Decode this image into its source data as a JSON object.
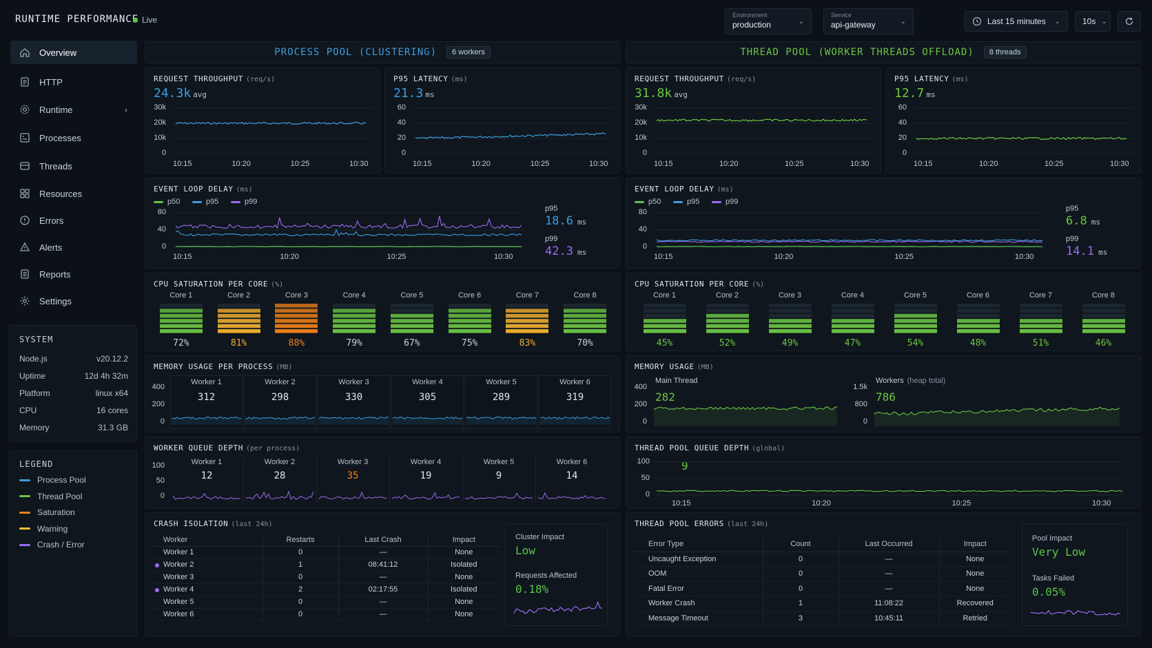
{
  "header": {
    "title": "RUNTIME PERFORMANCE",
    "live": "Live",
    "environment": {
      "label": "Environment",
      "value": "production"
    },
    "service": {
      "label": "Service",
      "value": "api-gateway"
    },
    "time_range": "Last 15 minutes",
    "refresh_interval": "10s"
  },
  "sidebar": {
    "items": [
      {
        "label": "Overview",
        "icon": "home-icon"
      },
      {
        "label": "HTTP",
        "icon": "document-icon"
      },
      {
        "label": "Runtime",
        "icon": "gear-icon"
      },
      {
        "label": "Processes",
        "icon": "processes-icon"
      },
      {
        "label": "Threads",
        "icon": "threads-icon"
      },
      {
        "label": "Resources",
        "icon": "grid-icon"
      },
      {
        "label": "Errors",
        "icon": "error-icon"
      },
      {
        "label": "Alerts",
        "icon": "alert-icon"
      },
      {
        "label": "Reports",
        "icon": "reports-icon"
      },
      {
        "label": "Settings",
        "icon": "settings-icon"
      }
    ],
    "system": {
      "title": "SYSTEM",
      "rows": [
        {
          "k": "Node.js",
          "v": "v20.12.2"
        },
        {
          "k": "Uptime",
          "v": "12d 4h 32m"
        },
        {
          "k": "Platform",
          "v": "linux x64"
        },
        {
          "k": "CPU",
          "v": "16 cores"
        },
        {
          "k": "Memory",
          "v": "31.3 GB"
        }
      ]
    },
    "legend": {
      "title": "LEGEND",
      "items": [
        {
          "label": "Process Pool",
          "color": "#3d9de0"
        },
        {
          "label": "Thread Pool",
          "color": "#6cc644"
        },
        {
          "label": "Saturation",
          "color": "#f0811a"
        },
        {
          "label": "Warning",
          "color": "#f2c230"
        },
        {
          "label": "Crash / Error",
          "color": "#9b6cf0"
        }
      ]
    }
  },
  "colors": {
    "process": "#3d9de0",
    "thread": "#6cc644",
    "orange": "#f0811a",
    "yellow": "#f2b030",
    "purple": "#9b6cf0",
    "p50": "#5bc34a",
    "p95": "#3d9de0",
    "p99": "#9b6cf0"
  },
  "left": {
    "header": {
      "title": "PROCESS POOL (CLUSTERING)",
      "badge": "6 workers"
    },
    "throughput": {
      "title": "REQUEST THROUGHPUT",
      "unit": "(req/s)",
      "value": "24.3k",
      "suffix": "avg",
      "yticks": [
        "30k",
        "20k",
        "10k",
        "0"
      ],
      "xticks": [
        "10:15",
        "10:20",
        "10:25",
        "10:30"
      ],
      "level": 20000,
      "ymax": 30000
    },
    "latency": {
      "title": "P95 LATENCY",
      "unit": "(ms)",
      "value": "21.3",
      "suffix": "ms",
      "yticks": [
        "60",
        "40",
        "20",
        "0"
      ],
      "xticks": [
        "10:15",
        "10:20",
        "10:25",
        "10:30"
      ],
      "start": 20,
      "end": 26,
      "ymax": 60
    },
    "eventloop": {
      "title": "EVENT LOOP DELAY",
      "unit": "(ms)",
      "legend": [
        "p50",
        "p95",
        "p99"
      ],
      "yticks": [
        "80",
        "40",
        "0"
      ],
      "xticks": [
        "10:15",
        "10:20",
        "10:25",
        "10:30"
      ],
      "p95_label": "p95",
      "p95_value": "18.6",
      "p99_label": "p99",
      "p99_value": "42.3",
      "unit_short": "ms"
    },
    "cpu": {
      "title": "CPU SATURATION PER CORE",
      "unit": "(%)",
      "cores": [
        {
          "name": "Core 1",
          "value": "72%",
          "pct": 72,
          "level": "normal"
        },
        {
          "name": "Core 2",
          "value": "81%",
          "pct": 81,
          "level": "warning"
        },
        {
          "name": "Core 3",
          "value": "88%",
          "pct": 88,
          "level": "critical"
        },
        {
          "name": "Core 4",
          "value": "79%",
          "pct": 79,
          "level": "normal"
        },
        {
          "name": "Core 5",
          "value": "67%",
          "pct": 67,
          "level": "normal"
        },
        {
          "name": "Core 6",
          "value": "75%",
          "pct": 75,
          "level": "normal"
        },
        {
          "name": "Core 7",
          "value": "83%",
          "pct": 83,
          "level": "warning"
        },
        {
          "name": "Core 8",
          "value": "70%",
          "pct": 70,
          "level": "normal"
        }
      ]
    },
    "memory": {
      "title": "MEMORY USAGE PER PROCESS",
      "unit": "(MB)",
      "yticks": [
        "400",
        "200",
        "0"
      ],
      "workers": [
        {
          "name": "Worker 1",
          "value": "312"
        },
        {
          "name": "Worker 2",
          "value": "298"
        },
        {
          "name": "Worker 3",
          "value": "330"
        },
        {
          "name": "Worker 4",
          "value": "305"
        },
        {
          "name": "Worker 5",
          "value": "289"
        },
        {
          "name": "Worker 6",
          "value": "319"
        }
      ]
    },
    "queue": {
      "title": "WORKER QUEUE DEPTH",
      "unit": "(per process)",
      "yticks": [
        "100",
        "50",
        "0"
      ],
      "workers": [
        {
          "name": "Worker 1",
          "value": "12",
          "hot": false
        },
        {
          "name": "Worker 2",
          "value": "28",
          "hot": false
        },
        {
          "name": "Worker 3",
          "value": "35",
          "hot": true
        },
        {
          "name": "Worker 4",
          "value": "19",
          "hot": false
        },
        {
          "name": "Worker 5",
          "value": "9",
          "hot": false
        },
        {
          "name": "Worker 6",
          "value": "14",
          "hot": false
        }
      ]
    },
    "crash": {
      "title": "CRASH ISOLATION",
      "unit": "(last 24h)",
      "columns": [
        "Worker",
        "Restarts",
        "Last Crash",
        "Impact"
      ],
      "rows": [
        {
          "worker": "Worker 1",
          "restarts": "0",
          "last": "—",
          "impact": "None",
          "dot": false
        },
        {
          "worker": "Worker 2",
          "restarts": "1",
          "last": "08:41:12",
          "impact": "Isolated",
          "dot": true
        },
        {
          "worker": "Worker 3",
          "restarts": "0",
          "last": "—",
          "impact": "None",
          "dot": false
        },
        {
          "worker": "Worker 4",
          "restarts": "2",
          "last": "02:17:55",
          "impact": "Isolated",
          "dot": true
        },
        {
          "worker": "Worker 5",
          "restarts": "0",
          "last": "—",
          "impact": "None",
          "dot": false
        },
        {
          "worker": "Worker 6",
          "restarts": "0",
          "last": "—",
          "impact": "None",
          "dot": false
        }
      ],
      "impact_label": "Cluster Impact",
      "impact_value": "Low",
      "affected_label": "Requests Affected",
      "affected_value": "0.18%"
    }
  },
  "right": {
    "header": {
      "title": "THREAD POOL (WORKER THREADS OFFLOAD)",
      "badge": "8 threads"
    },
    "throughput": {
      "title": "REQUEST THROUGHPUT",
      "unit": "(req/s)",
      "value": "31.8k",
      "suffix": "avg",
      "yticks": [
        "30k",
        "20k",
        "10k",
        "0"
      ],
      "xticks": [
        "10:15",
        "10:20",
        "10:25",
        "10:30"
      ],
      "level": 22000,
      "ymax": 30000
    },
    "latency": {
      "title": "P95 LATENCY",
      "unit": "(ms)",
      "value": "12.7",
      "suffix": "ms",
      "yticks": [
        "60",
        "40",
        "20",
        "0"
      ],
      "xticks": [
        "10:15",
        "10:20",
        "10:25",
        "10:30"
      ],
      "start": 20,
      "end": 20,
      "ymax": 60
    },
    "eventloop": {
      "title": "EVENT LOOP DELAY",
      "unit": "(ms)",
      "legend": [
        "p50",
        "p95",
        "p99"
      ],
      "yticks": [
        "80",
        "40",
        "0"
      ],
      "xticks": [
        "10:15",
        "10:20",
        "10:25",
        "10:30"
      ],
      "p95_label": "p95",
      "p95_value": "6.8",
      "p99_label": "p99",
      "p99_value": "14.1",
      "unit_short": "ms"
    },
    "cpu": {
      "title": "CPU SATURATION PER CORE",
      "unit": "(%)",
      "cores": [
        {
          "name": "Core 1",
          "value": "45%",
          "pct": 45,
          "level": "normal"
        },
        {
          "name": "Core 2",
          "value": "52%",
          "pct": 52,
          "level": "normal"
        },
        {
          "name": "Core 3",
          "value": "49%",
          "pct": 49,
          "level": "normal"
        },
        {
          "name": "Core 4",
          "value": "47%",
          "pct": 47,
          "level": "normal"
        },
        {
          "name": "Core 5",
          "value": "54%",
          "pct": 54,
          "level": "normal"
        },
        {
          "name": "Core 6",
          "value": "48%",
          "pct": 48,
          "level": "normal"
        },
        {
          "name": "Core 7",
          "value": "51%",
          "pct": 51,
          "level": "normal"
        },
        {
          "name": "Core 8",
          "value": "46%",
          "pct": 46,
          "level": "normal"
        }
      ]
    },
    "memory": {
      "title": "MEMORY USAGE",
      "unit": "(MB)",
      "main": {
        "label": "Main Thread",
        "value": "282",
        "yticks": [
          "400",
          "200",
          "0"
        ]
      },
      "workers": {
        "label": "Workers",
        "sub": "(heap total)",
        "value": "786",
        "yticks": [
          "1.5k",
          "800",
          "0"
        ]
      }
    },
    "queue": {
      "title": "THREAD POOL QUEUE DEPTH",
      "unit": "(global)",
      "value": "9",
      "yticks": [
        "100",
        "50",
        "0"
      ],
      "xticks": [
        "10:15",
        "10:20",
        "10:25",
        "10:30"
      ]
    },
    "errors": {
      "title": "THREAD POOL ERRORS",
      "unit": "(last 24h)",
      "columns": [
        "Error Type",
        "Count",
        "Last Occurred",
        "Impact"
      ],
      "rows": [
        {
          "type": "Uncaught Exception",
          "count": "0",
          "last": "—",
          "impact": "None"
        },
        {
          "type": "OOM",
          "count": "0",
          "last": "—",
          "impact": "None"
        },
        {
          "type": "Fatal Error",
          "count": "0",
          "last": "—",
          "impact": "None"
        },
        {
          "type": "Worker Crash",
          "count": "1",
          "last": "11:08:22",
          "impact": "Recovered"
        },
        {
          "type": "Message Timeout",
          "count": "3",
          "last": "10:45:11",
          "impact": "Retried"
        }
      ],
      "impact_label": "Pool Impact",
      "impact_value": "Very Low",
      "failed_label": "Tasks Failed",
      "failed_value": "0.05%"
    }
  }
}
